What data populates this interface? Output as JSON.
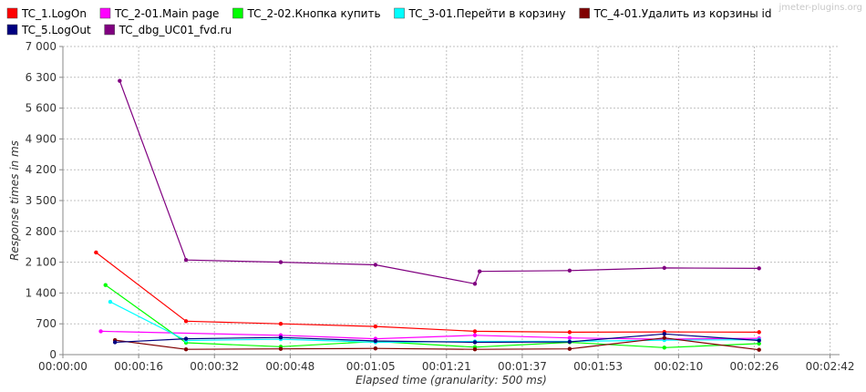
{
  "watermark": "jmeter-plugins.org",
  "chart_data": {
    "type": "line",
    "title": "",
    "xlabel": "Elapsed time (granularity: 500 ms)",
    "ylabel": "Response times in ms",
    "xlim": [
      0,
      164
    ],
    "ylim": [
      0,
      7000
    ],
    "x_tick_values": [
      0,
      16,
      32,
      48,
      65,
      81,
      97,
      113,
      130,
      146,
      162
    ],
    "x_tick_labels": [
      "00:00:00",
      "00:00:16",
      "00:00:32",
      "00:00:48",
      "00:01:05",
      "00:01:21",
      "00:01:37",
      "00:01:53",
      "00:02:10",
      "00:02:26",
      "00:02:42"
    ],
    "y_tick_values": [
      0,
      700,
      1400,
      2100,
      2800,
      3500,
      4200,
      4900,
      5600,
      6300,
      7000
    ],
    "y_tick_labels": [
      "0",
      "700",
      "1 400",
      "2 100",
      "2 800",
      "3 500",
      "4 200",
      "4 900",
      "5 600",
      "6 300",
      "7 000"
    ],
    "grid": true,
    "legend_position": "top",
    "series": [
      {
        "name": "TC_1.LogOn",
        "color": "#ff0000",
        "points": [
          [
            7,
            2320
          ],
          [
            26,
            760
          ],
          [
            46,
            700
          ],
          [
            66,
            640
          ],
          [
            87,
            530
          ],
          [
            107,
            510
          ],
          [
            127,
            515
          ],
          [
            147,
            510
          ],
          [
            167,
            530
          ]
        ]
      },
      {
        "name": "TC_2-01.Main page",
        "color": "#ff00ff",
        "points": [
          [
            8,
            530
          ],
          [
            46,
            440
          ],
          [
            66,
            360
          ],
          [
            87,
            440
          ],
          [
            107,
            380
          ],
          [
            127,
            350
          ],
          [
            147,
            370
          ],
          [
            167,
            380
          ]
        ]
      },
      {
        "name": "TC_2-02.Кнопка купить",
        "color": "#00ff00",
        "points": [
          [
            9,
            1580
          ],
          [
            26,
            270
          ],
          [
            46,
            180
          ],
          [
            66,
            300
          ],
          [
            87,
            170
          ],
          [
            107,
            280
          ],
          [
            127,
            160
          ],
          [
            147,
            250
          ],
          [
            167,
            170
          ]
        ]
      },
      {
        "name": "TC_3-01.Перейти в корзину",
        "color": "#00ffff",
        "points": [
          [
            10,
            1200
          ],
          [
            26,
            320
          ],
          [
            46,
            350
          ],
          [
            66,
            280
          ],
          [
            87,
            300
          ],
          [
            107,
            300
          ],
          [
            127,
            330
          ],
          [
            147,
            340
          ],
          [
            167,
            330
          ]
        ]
      },
      {
        "name": "TC_4-01.Удалить из корзины id",
        "color": "#800000",
        "points": [
          [
            11,
            330
          ],
          [
            26,
            120
          ],
          [
            46,
            130
          ],
          [
            66,
            140
          ],
          [
            87,
            120
          ],
          [
            107,
            130
          ],
          [
            127,
            380
          ],
          [
            147,
            110
          ],
          [
            167,
            110
          ]
        ]
      },
      {
        "name": "TC_5.LogOut",
        "color": "#000080",
        "points": [
          [
            11,
            280
          ],
          [
            26,
            360
          ],
          [
            46,
            390
          ],
          [
            66,
            310
          ],
          [
            87,
            280
          ],
          [
            107,
            290
          ],
          [
            127,
            470
          ],
          [
            147,
            320
          ],
          [
            167,
            300
          ]
        ]
      },
      {
        "name": "TC_dbg_UC01_fvd.ru",
        "color": "#800080",
        "points": [
          [
            12,
            6220
          ],
          [
            26,
            2150
          ],
          [
            46,
            2100
          ],
          [
            66,
            2040
          ],
          [
            87,
            1610
          ],
          [
            88,
            1890
          ],
          [
            107,
            1910
          ],
          [
            127,
            1970
          ],
          [
            147,
            1960
          ],
          [
            167,
            1670
          ],
          [
            168,
            2090
          ]
        ]
      }
    ]
  }
}
